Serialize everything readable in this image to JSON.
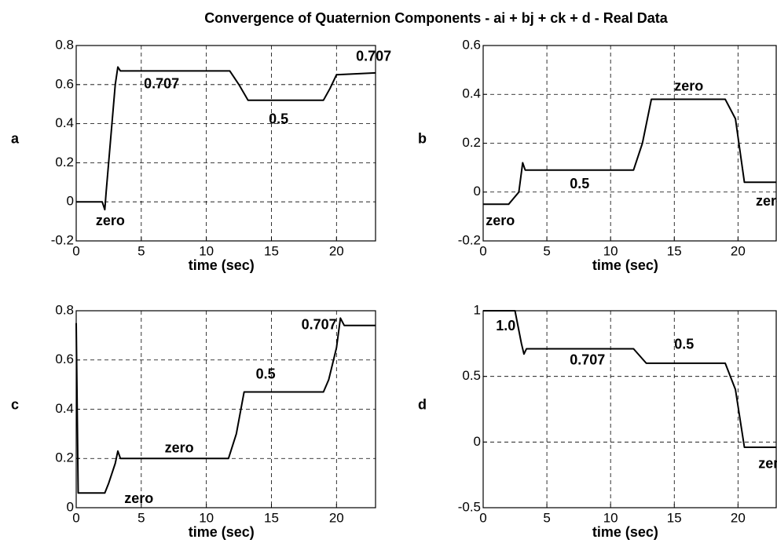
{
  "title": "Convergence of Quaternion Components - ai + bj + ck + d - Real Data",
  "chart_data": [
    {
      "type": "line",
      "ylabel": "a",
      "xlabel": "time (sec)",
      "xlim": [
        0,
        23
      ],
      "ylim": [
        -0.2,
        0.8
      ],
      "xticks": [
        0,
        5,
        10,
        15,
        20
      ],
      "yticks": [
        -0.2,
        0,
        0.2,
        0.4,
        0.6,
        0.8
      ],
      "grid": true,
      "annotations": [
        "0.707",
        "0.5",
        "0.707",
        "zero"
      ],
      "series": [
        {
          "color": "#000000",
          "x": [
            0,
            2.0,
            2.2,
            2.3,
            3.0,
            3.2,
            3.4,
            11.8,
            12.5,
            13.2,
            19.0,
            19.5,
            20.0,
            23
          ],
          "values": [
            0.0,
            0.0,
            -0.04,
            0.05,
            0.6,
            0.69,
            0.67,
            0.67,
            0.6,
            0.52,
            0.52,
            0.58,
            0.65,
            0.66
          ]
        }
      ]
    },
    {
      "type": "line",
      "ylabel": "b",
      "xlabel": "time (sec)",
      "xlim": [
        0,
        23
      ],
      "ylim": [
        -0.2,
        0.6
      ],
      "xticks": [
        0,
        5,
        10,
        15,
        20
      ],
      "yticks": [
        -0.2,
        0,
        0.2,
        0.4,
        0.6
      ],
      "grid": true,
      "annotations": [
        "0.5",
        "zero",
        "zero",
        "zero"
      ],
      "series": [
        {
          "color": "#000000",
          "x": [
            0,
            2.0,
            2.8,
            3.1,
            3.3,
            11.8,
            12.5,
            13.2,
            19.0,
            19.8,
            20.5,
            23
          ],
          "values": [
            -0.05,
            -0.05,
            0.0,
            0.12,
            0.09,
            0.09,
            0.2,
            0.38,
            0.38,
            0.3,
            0.04,
            0.04
          ]
        }
      ]
    },
    {
      "type": "line",
      "ylabel": "c",
      "xlabel": "time (sec)",
      "xlim": [
        0,
        23
      ],
      "ylim": [
        0,
        0.8
      ],
      "xticks": [
        0,
        5,
        10,
        15,
        20
      ],
      "yticks": [
        0,
        0.2,
        0.4,
        0.6,
        0.8
      ],
      "grid": true,
      "annotations": [
        "zero",
        "0.5",
        "0.707",
        "zero"
      ],
      "series": [
        {
          "color": "#000000",
          "x": [
            0,
            0.15,
            2.2,
            2.5,
            3.0,
            3.2,
            3.4,
            11.7,
            12.3,
            12.9,
            19.0,
            19.4,
            20.0,
            20.3,
            20.6,
            23
          ],
          "values": [
            0.75,
            0.06,
            0.06,
            0.1,
            0.18,
            0.23,
            0.2,
            0.2,
            0.3,
            0.47,
            0.47,
            0.52,
            0.65,
            0.77,
            0.74,
            0.74
          ]
        }
      ]
    },
    {
      "type": "line",
      "ylabel": "d",
      "xlabel": "time (sec)",
      "xlim": [
        0,
        23
      ],
      "ylim": [
        -0.5,
        1
      ],
      "xticks": [
        0,
        5,
        10,
        15,
        20
      ],
      "yticks": [
        -0.5,
        0,
        0.5,
        1
      ],
      "grid": true,
      "annotations": [
        "1.0",
        "0.707",
        "0.5",
        "zero"
      ],
      "series": [
        {
          "color": "#000000",
          "x": [
            0,
            2.5,
            3.0,
            3.2,
            3.4,
            11.8,
            12.8,
            19.0,
            19.8,
            20.5,
            23
          ],
          "values": [
            1.0,
            1.0,
            0.75,
            0.67,
            0.71,
            0.71,
            0.6,
            0.6,
            0.4,
            -0.04,
            -0.04
          ]
        }
      ]
    }
  ]
}
